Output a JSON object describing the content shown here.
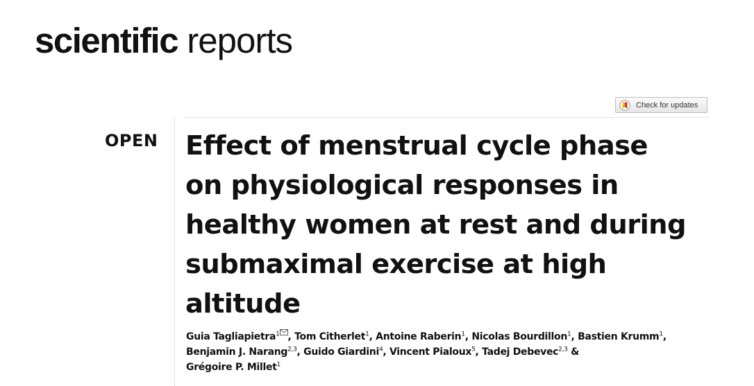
{
  "journal": {
    "name_bold": "scientific",
    "name_regular": "reports"
  },
  "check_updates": {
    "label": "Check for updates",
    "icon": "crossmark-icon"
  },
  "open_access_label": "OPEN",
  "title_lines": [
    "Effect of menstrual cycle phase",
    "on physiological responses in",
    "healthy women at rest and during",
    "submaximal exercise at high",
    "altitude"
  ],
  "author_lines": [
    [
      {
        "name": "Guia Tagliapietra",
        "sup": "1",
        "corresponding": true,
        "sep": ", "
      },
      {
        "name": "Tom Citherlet",
        "sup": "1",
        "sep": ", "
      },
      {
        "name": "Antoine Raberin",
        "sup": "1",
        "sep": ", "
      },
      {
        "name": "Nicolas Bourdillon",
        "sup": "1",
        "sep": ", "
      },
      {
        "name": "Bastien Krumm",
        "sup": "1",
        "sep": ","
      }
    ],
    [
      {
        "name": "Benjamin J. Narang",
        "sup": "2,3",
        "sep": ", "
      },
      {
        "name": "Guido Giardini",
        "sup": "4",
        "sep": ", "
      },
      {
        "name": "Vincent Pialoux",
        "sup": "5",
        "sep": ", "
      },
      {
        "name": "Tadej Debevec",
        "sup": "2,3",
        "sep": " &"
      }
    ],
    [
      {
        "name": "Grégoire P. Millet",
        "sup": "1",
        "sep": ""
      }
    ]
  ],
  "colors": {
    "text": "#111111",
    "rule": "#c8c8c8",
    "crossmark_red": "#d12d2d",
    "crossmark_yellow": "#f3c000"
  }
}
